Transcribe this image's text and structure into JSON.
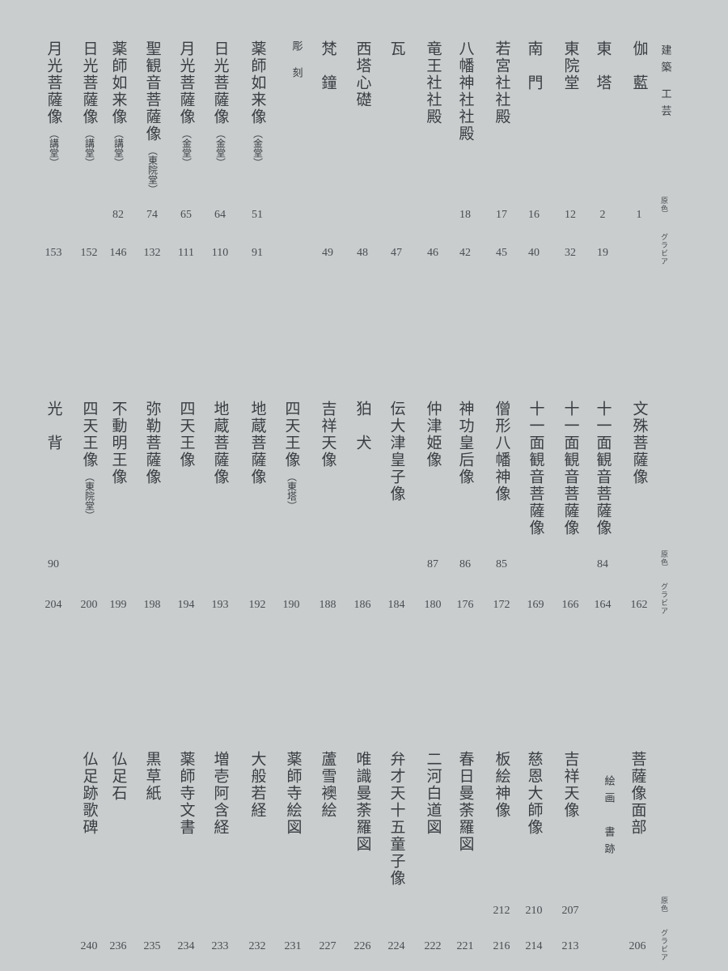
{
  "labels": {
    "color": "原色",
    "gravure": "グラビア"
  },
  "sections": [
    {
      "entries": [
        {
          "title": "建築 工芸",
          "header": true
        },
        {
          "title": "伽　藍",
          "color": "1"
        },
        {
          "title": "東　塔",
          "color": "2",
          "gravure": "19"
        },
        {
          "title": "東院堂",
          "color": "12",
          "gravure": "32"
        },
        {
          "title": "南　門",
          "color": "16",
          "gravure": "40"
        },
        {
          "title": "若宮社社殿",
          "color": "17",
          "gravure": "45"
        },
        {
          "title": "八幡神社社殿",
          "color": "18",
          "gravure": "42"
        },
        {
          "title": "竜王社社殿",
          "gravure": "46"
        },
        {
          "title": "瓦",
          "gravure": "47"
        },
        {
          "title": "西塔心礎",
          "gravure": "48"
        },
        {
          "title": "梵　鐘",
          "gravure": "49"
        },
        {
          "title": "彫 刻",
          "header": true
        },
        {
          "title": "薬師如来像",
          "note": "（金堂）",
          "color": "51",
          "gravure": "91"
        },
        {
          "title": "日光菩薩像",
          "note": "（金堂）",
          "color": "64",
          "gravure": "110"
        },
        {
          "title": "月光菩薩像",
          "note": "（金堂）",
          "color": "65",
          "gravure": "111"
        },
        {
          "title": "聖観音菩薩像",
          "note": "（東院堂）",
          "color": "74",
          "gravure": "132"
        },
        {
          "title": "薬師如来像",
          "note": "（講堂）",
          "color": "82",
          "gravure": "146"
        },
        {
          "title": "日光菩薩像",
          "note": "（講堂）",
          "gravure": "152"
        },
        {
          "title": "月光菩薩像",
          "note": "（講堂）",
          "gravure": "153"
        }
      ]
    },
    {
      "entries": [
        {
          "title": "文殊菩薩像",
          "gravure": "162"
        },
        {
          "title": "十一面観音菩薩像",
          "color": "84",
          "gravure": "164"
        },
        {
          "title": "十一面観音菩薩像",
          "gravure": "166"
        },
        {
          "title": "十一面観音菩薩像",
          "gravure": "169"
        },
        {
          "title": "僧形八幡神像",
          "color": "85",
          "gravure": "172"
        },
        {
          "title": "神功皇后像",
          "color": "86",
          "gravure": "176"
        },
        {
          "title": "仲津姫像",
          "color": "87",
          "gravure": "180"
        },
        {
          "title": "伝大津皇子像",
          "gravure": "184"
        },
        {
          "title": "狛　犬",
          "gravure": "186"
        },
        {
          "title": "吉祥天像",
          "gravure": "188"
        },
        {
          "title": "四天王像",
          "note": "（東塔）",
          "gravure": "190"
        },
        {
          "title": "地蔵菩薩像",
          "gravure": "192"
        },
        {
          "title": "地蔵菩薩像",
          "gravure": "193"
        },
        {
          "title": "四天王像",
          "gravure": "194"
        },
        {
          "title": "弥勒菩薩像",
          "gravure": "198"
        },
        {
          "title": "不動明王像",
          "gravure": "199"
        },
        {
          "title": "四天王像",
          "note": "（東院堂）",
          "gravure": "200"
        },
        {
          "title": "光　背",
          "color": "90",
          "gravure": "204"
        }
      ]
    },
    {
      "entries": [
        {
          "title": "菩薩像面部",
          "gravure": "206"
        },
        {
          "title": "絵画　書跡",
          "header": true
        },
        {
          "title": "吉祥天像",
          "color": "207",
          "gravure": "213"
        },
        {
          "title": "慈恩大師像",
          "color": "210",
          "gravure": "214"
        },
        {
          "title": "板絵神像",
          "color": "212",
          "gravure": "216"
        },
        {
          "title": "春日曼荼羅図",
          "gravure": "221"
        },
        {
          "title": "二河白道図",
          "gravure": "222"
        },
        {
          "title": "弁才天十五童子像",
          "gravure": "224"
        },
        {
          "title": "唯識曼荼羅図",
          "gravure": "226"
        },
        {
          "title": "蘆雪襖絵",
          "gravure": "227"
        },
        {
          "title": "薬師寺絵図",
          "gravure": "231"
        },
        {
          "title": "大般若経",
          "gravure": "232"
        },
        {
          "title": "増壱阿含経",
          "gravure": "233"
        },
        {
          "title": "薬師寺文書",
          "gravure": "234"
        },
        {
          "title": "黒草紙",
          "gravure": "235"
        },
        {
          "title": "仏足石",
          "gravure": "236"
        },
        {
          "title": "仏足跡歌碑",
          "gravure": "240"
        }
      ]
    }
  ]
}
